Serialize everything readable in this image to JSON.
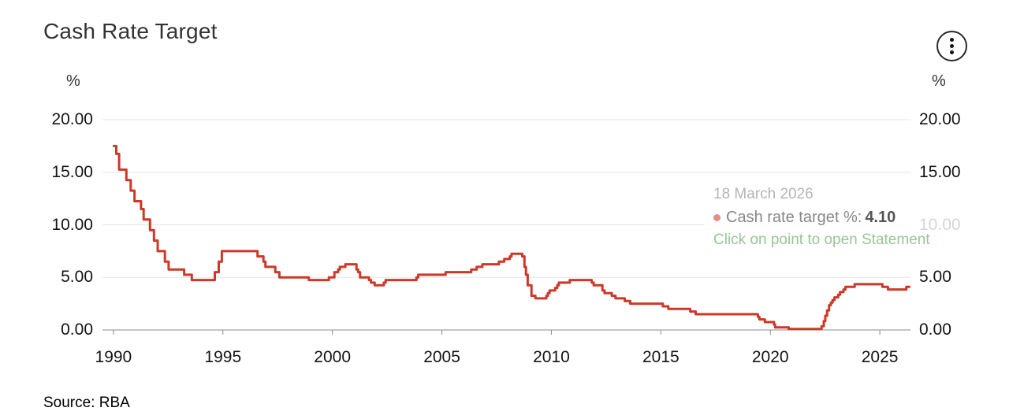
{
  "header": {
    "title": "Cash Rate Target"
  },
  "icons": {
    "context_menu": "kebab-menu-icon",
    "series_marker": "circle-dot-icon"
  },
  "axes": {
    "y_unit": "%"
  },
  "tooltip": {
    "date": "18 March 2026",
    "series_label": "Cash rate target %:",
    "value": "4.10",
    "hint": "Click on point to open Statement"
  },
  "footer": {
    "source": "Source: RBA"
  },
  "theme": {
    "line_red": "#cc3928",
    "tooltip_dot": "#e48d80",
    "tooltip_green": "#95c795",
    "grid_gray": "#e6e6e6",
    "axis_gray": "#8c8c8c",
    "title_gray": "#333333"
  },
  "chart_data": {
    "type": "line",
    "step": true,
    "title": "Cash Rate Target",
    "xlabel": "",
    "ylabel": "%",
    "legend": "none",
    "grid": "horizontal",
    "xlim": [
      1989.5,
      2026.4
    ],
    "ylim": [
      0,
      20
    ],
    "x_ticks": [
      1990,
      1995,
      2000,
      2005,
      2010,
      2015,
      2020,
      2025
    ],
    "x_tick_labels": [
      "1990",
      "1995",
      "2000",
      "2005",
      "2010",
      "2015",
      "2020",
      "2025"
    ],
    "y_ticks": [
      0,
      5,
      10,
      15,
      20
    ],
    "y_tick_labels": [
      "0.00",
      "5.00",
      "10.00",
      "15.00",
      "20.00"
    ],
    "colors": {
      "grid": "#e6e6e6",
      "axis": "#8c8c8c"
    },
    "series": [
      {
        "name": "Cash rate target %",
        "color": "#cc3928",
        "points": [
          [
            1990.02,
            17.5
          ],
          [
            1990.13,
            16.75
          ],
          [
            1990.26,
            15.25
          ],
          [
            1990.59,
            14.25
          ],
          [
            1990.79,
            13.25
          ],
          [
            1990.96,
            12.25
          ],
          [
            1991.26,
            11.5
          ],
          [
            1991.38,
            10.5
          ],
          [
            1991.67,
            9.5
          ],
          [
            1991.85,
            8.5
          ],
          [
            1992.02,
            7.5
          ],
          [
            1992.35,
            6.5
          ],
          [
            1992.52,
            5.75
          ],
          [
            1993.23,
            5.25
          ],
          [
            1993.58,
            4.75
          ],
          [
            1994.63,
            5.5
          ],
          [
            1994.81,
            6.5
          ],
          [
            1994.95,
            7.5
          ],
          [
            1996.58,
            7.0
          ],
          [
            1996.85,
            6.5
          ],
          [
            1996.94,
            6.0
          ],
          [
            1997.39,
            5.5
          ],
          [
            1997.58,
            5.0
          ],
          [
            1998.92,
            4.75
          ],
          [
            1999.84,
            5.0
          ],
          [
            2000.09,
            5.5
          ],
          [
            2000.26,
            5.75
          ],
          [
            2000.34,
            6.0
          ],
          [
            2000.59,
            6.25
          ],
          [
            2001.1,
            5.75
          ],
          [
            2001.18,
            5.5
          ],
          [
            2001.26,
            5.0
          ],
          [
            2001.67,
            4.75
          ],
          [
            2001.76,
            4.5
          ],
          [
            2001.93,
            4.25
          ],
          [
            2002.35,
            4.5
          ],
          [
            2002.43,
            4.75
          ],
          [
            2003.84,
            5.0
          ],
          [
            2003.92,
            5.25
          ],
          [
            2005.17,
            5.5
          ],
          [
            2006.34,
            5.75
          ],
          [
            2006.59,
            6.0
          ],
          [
            2006.85,
            6.25
          ],
          [
            2007.6,
            6.5
          ],
          [
            2007.85,
            6.75
          ],
          [
            2008.1,
            7.0
          ],
          [
            2008.18,
            7.25
          ],
          [
            2008.67,
            7.0
          ],
          [
            2008.77,
            6.0
          ],
          [
            2008.84,
            5.25
          ],
          [
            2008.92,
            4.25
          ],
          [
            2009.09,
            3.25
          ],
          [
            2009.27,
            3.0
          ],
          [
            2009.77,
            3.25
          ],
          [
            2009.84,
            3.5
          ],
          [
            2009.92,
            3.75
          ],
          [
            2010.17,
            4.0
          ],
          [
            2010.27,
            4.25
          ],
          [
            2010.34,
            4.5
          ],
          [
            2010.84,
            4.75
          ],
          [
            2011.84,
            4.5
          ],
          [
            2011.93,
            4.25
          ],
          [
            2012.33,
            3.75
          ],
          [
            2012.43,
            3.5
          ],
          [
            2012.76,
            3.25
          ],
          [
            2012.93,
            3.0
          ],
          [
            2013.35,
            2.75
          ],
          [
            2013.6,
            2.5
          ],
          [
            2015.09,
            2.25
          ],
          [
            2015.34,
            2.0
          ],
          [
            2016.34,
            1.75
          ],
          [
            2016.59,
            1.5
          ],
          [
            2019.43,
            1.25
          ],
          [
            2019.5,
            1.0
          ],
          [
            2019.75,
            0.75
          ],
          [
            2020.17,
            0.5
          ],
          [
            2020.22,
            0.25
          ],
          [
            2020.84,
            0.1
          ],
          [
            2022.34,
            0.35
          ],
          [
            2022.44,
            0.85
          ],
          [
            2022.51,
            1.35
          ],
          [
            2022.59,
            1.85
          ],
          [
            2022.68,
            2.35
          ],
          [
            2022.76,
            2.6
          ],
          [
            2022.84,
            2.85
          ],
          [
            2022.93,
            3.1
          ],
          [
            2023.1,
            3.35
          ],
          [
            2023.18,
            3.6
          ],
          [
            2023.34,
            3.85
          ],
          [
            2023.43,
            4.1
          ],
          [
            2023.85,
            4.35
          ],
          [
            2025.12,
            4.1
          ],
          [
            2025.37,
            3.85
          ],
          [
            2026.21,
            4.1
          ],
          [
            2026.35,
            4.1
          ]
        ]
      }
    ]
  }
}
